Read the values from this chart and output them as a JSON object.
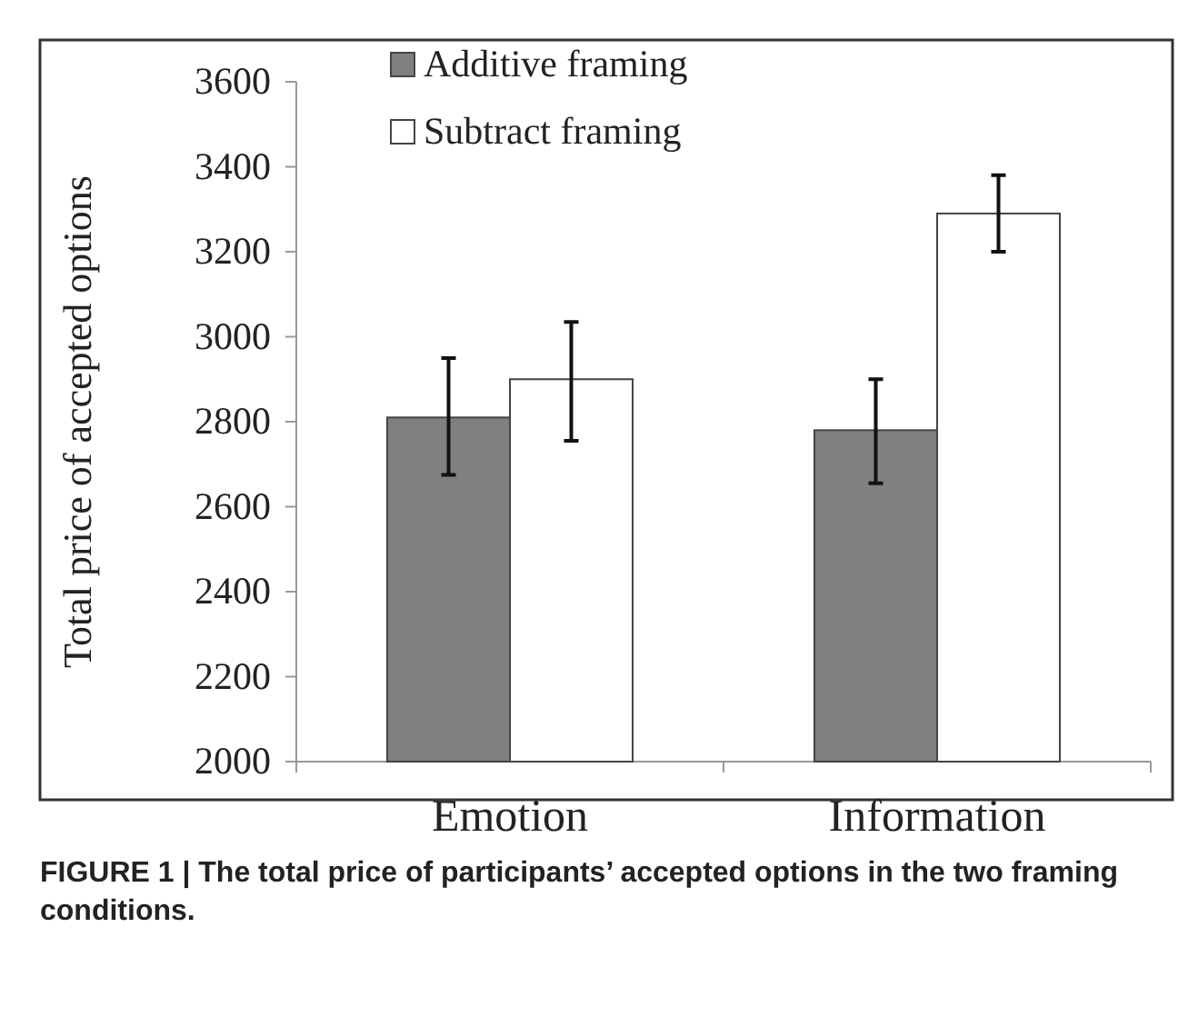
{
  "chart_data": {
    "type": "bar",
    "ylabel": "Total price of accepted options",
    "categories": [
      "Emotion",
      "Information"
    ],
    "series": [
      {
        "name": "Additive framing",
        "color": "#808080",
        "values": [
          2810,
          2780
        ],
        "errors": [
          [
            2675,
            2950
          ],
          [
            2655,
            2900
          ]
        ]
      },
      {
        "name": "Subtract framing",
        "color": "#ffffff",
        "values": [
          2900,
          3290
        ],
        "errors": [
          [
            2755,
            3035
          ],
          [
            3200,
            3380
          ]
        ]
      }
    ],
    "ylim": [
      2000,
      3600
    ],
    "yticks": [
      2000,
      2200,
      2400,
      2600,
      2800,
      3000,
      3200,
      3400,
      3600
    ],
    "grid": false,
    "legend": "top",
    "annotations": [
      "FIGURE 1 | The total price of participants’ accepted options in the two framing conditions."
    ]
  }
}
